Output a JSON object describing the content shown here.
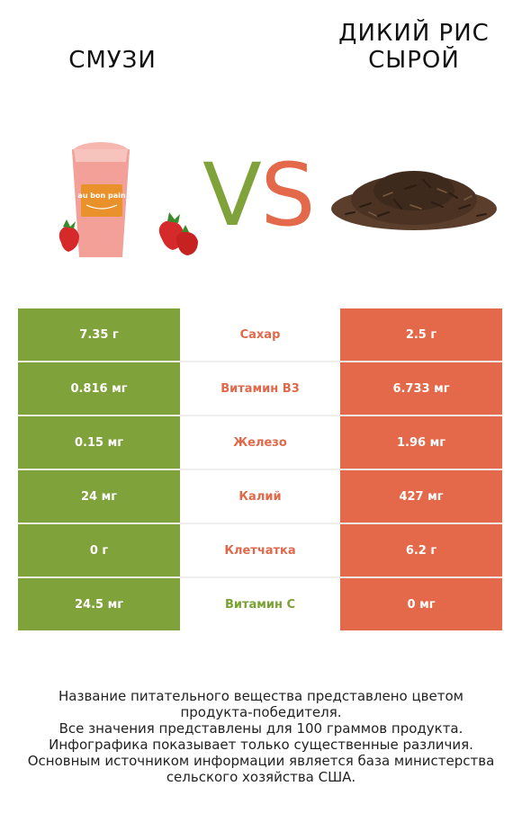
{
  "left_product": "СМУЗИ",
  "right_product_line1": "ДИКИЙ РИС",
  "right_product_line2": "СЫРОЙ",
  "vs_left": "V",
  "vs_right": "S",
  "colors": {
    "left": "#7fa23a",
    "right": "#e4694a"
  },
  "rows": [
    {
      "left": "7.35 г",
      "label": "Сахар",
      "right": "2.5 г",
      "winner": "right"
    },
    {
      "left": "0.816 мг",
      "label": "Витамин B3",
      "right": "6.733 мг",
      "winner": "right"
    },
    {
      "left": "0.15 мг",
      "label": "Железо",
      "right": "1.96 мг",
      "winner": "right"
    },
    {
      "left": "24 мг",
      "label": "Калий",
      "right": "427 мг",
      "winner": "right"
    },
    {
      "left": "0 г",
      "label": "Клетчатка",
      "right": "6.2 г",
      "winner": "right"
    },
    {
      "left": "24.5 мг",
      "label": "Витамин C",
      "right": "0 мг",
      "winner": "left"
    }
  ],
  "cup_logo": "au bon pain",
  "footer": [
    "Название питательного вещества представлено цветом",
    "продукта-победителя.",
    "Все значения представлены для 100 граммов продукта.",
    "Инфографика показывает только существенные различия.",
    "Основным источником информации является база министерства",
    "сельского хозяйства США."
  ]
}
